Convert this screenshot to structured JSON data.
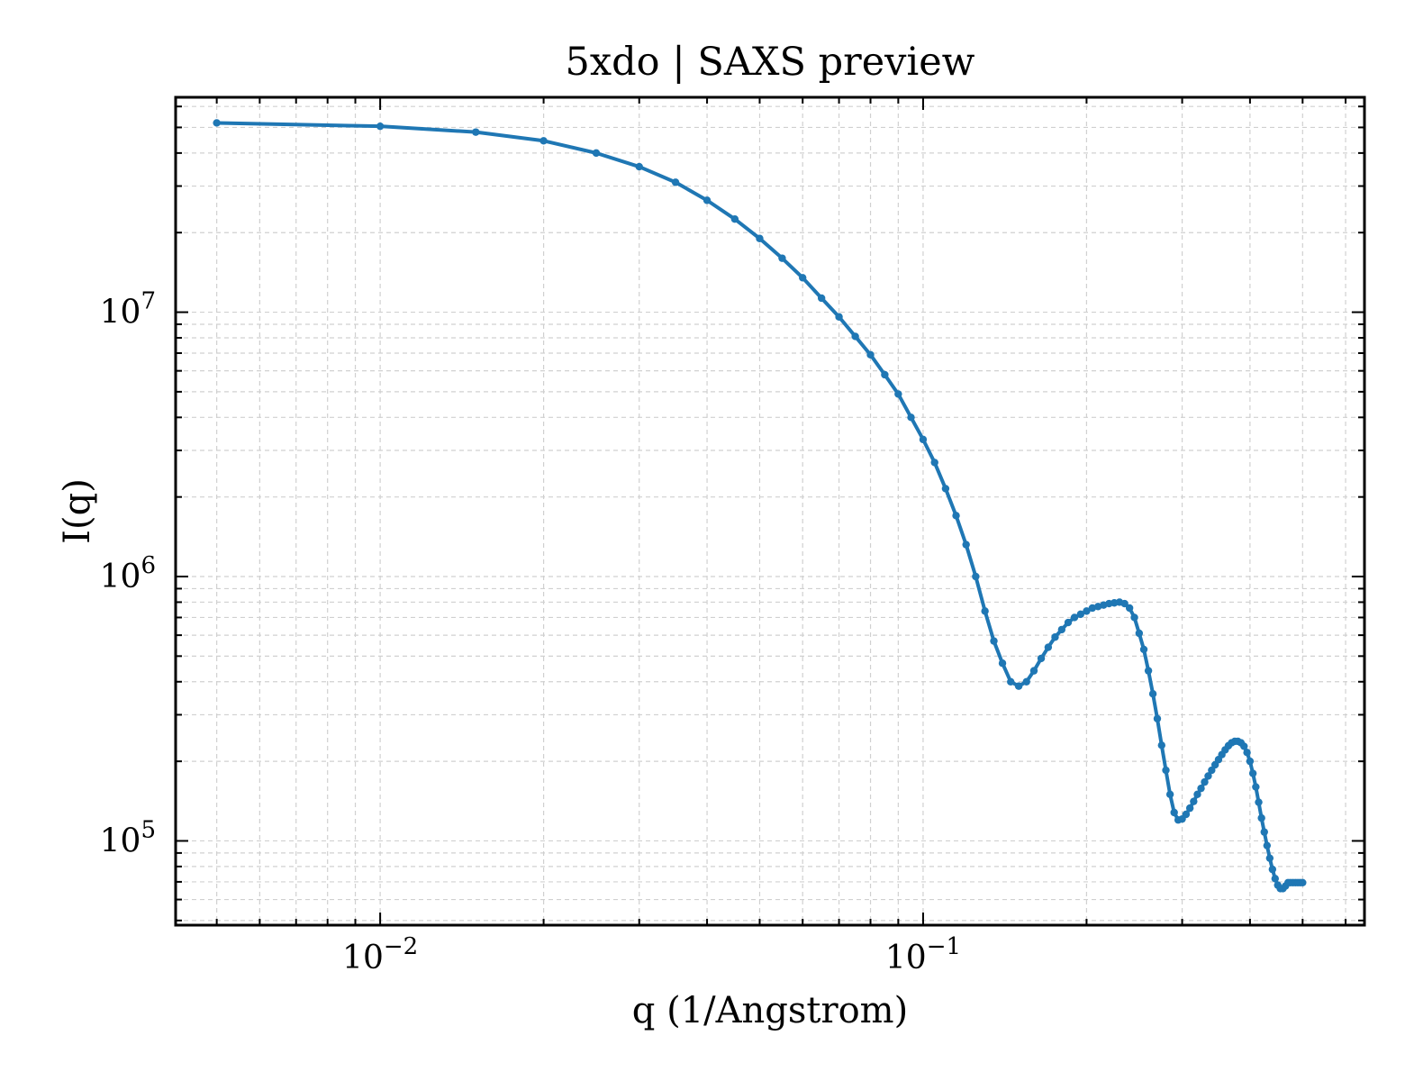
{
  "chart_data": {
    "type": "line",
    "title": "5xdo | SAXS preview",
    "xlabel": "q (1/Angstrom)",
    "ylabel": "I(q)",
    "xscale": "log",
    "yscale": "log",
    "xlim": [
      0.0042,
      0.65
    ],
    "ylim": [
      48000,
      65000000
    ],
    "grid": true,
    "legend": "none",
    "x_ticks": [
      {
        "value": 0.01,
        "base": "10",
        "exp": "−2"
      },
      {
        "value": 0.1,
        "base": "10",
        "exp": "−1"
      }
    ],
    "y_ticks": [
      {
        "value": 100000,
        "base": "10",
        "exp": "5"
      },
      {
        "value": 1000000,
        "base": "10",
        "exp": "6"
      },
      {
        "value": 10000000,
        "base": "10",
        "exp": "7"
      }
    ],
    "colors": {
      "line": "#1f77b4",
      "grid": "#d0d0d0",
      "axes": "#000000"
    },
    "series": [
      {
        "x": [
          0.005,
          0.01,
          0.015,
          0.02,
          0.025,
          0.03,
          0.035,
          0.04,
          0.045,
          0.05,
          0.055,
          0.06,
          0.065,
          0.07,
          0.075,
          0.08,
          0.085,
          0.09,
          0.095,
          0.1,
          0.105,
          0.11,
          0.115,
          0.12,
          0.125,
          0.13,
          0.135,
          0.14,
          0.145,
          0.15,
          0.155,
          0.16,
          0.165,
          0.17,
          0.175,
          0.18,
          0.185,
          0.19,
          0.195,
          0.2,
          0.205,
          0.21,
          0.215,
          0.22,
          0.225,
          0.23,
          0.235,
          0.24,
          0.245,
          0.25,
          0.255,
          0.26,
          0.265,
          0.27,
          0.275,
          0.28,
          0.285,
          0.29,
          0.295,
          0.3,
          0.305,
          0.31,
          0.315,
          0.32,
          0.325,
          0.33,
          0.335,
          0.34,
          0.345,
          0.35,
          0.355,
          0.36,
          0.365,
          0.37,
          0.375,
          0.38,
          0.385,
          0.39,
          0.395,
          0.4,
          0.405,
          0.41,
          0.415,
          0.42,
          0.425,
          0.43,
          0.435,
          0.44,
          0.445,
          0.45,
          0.455,
          0.46,
          0.465,
          0.47,
          0.475,
          0.48,
          0.485,
          0.49,
          0.495,
          0.5
        ],
        "y": [
          52000000,
          50500000,
          48000000,
          44500000,
          40000000,
          35500000,
          31000000,
          26500000,
          22500000,
          19000000,
          16000000,
          13500000,
          11300000,
          9600000,
          8100000,
          6900000,
          5800000,
          4900000,
          4000000,
          3300000,
          2700000,
          2150000,
          1700000,
          1320000,
          1000000,
          740000,
          570000,
          470000,
          400000,
          385000,
          400000,
          440000,
          490000,
          540000,
          590000,
          630000,
          670000,
          700000,
          720000,
          740000,
          760000,
          770000,
          780000,
          790000,
          795000,
          800000,
          790000,
          760000,
          700000,
          610000,
          530000,
          440000,
          360000,
          290000,
          230000,
          185000,
          150000,
          128000,
          120000,
          121000,
          126000,
          133000,
          141000,
          150000,
          158000,
          167000,
          176000,
          185000,
          194000,
          203000,
          212000,
          221000,
          229000,
          235000,
          238000,
          238000,
          235000,
          228000,
          216000,
          200000,
          180000,
          160000,
          140000,
          122000,
          108000,
          96000,
          86000,
          78000,
          72000,
          68000,
          66000,
          66000,
          67500,
          69500,
          69500,
          69500,
          69500,
          69500,
          69500,
          69500
        ]
      }
    ]
  }
}
